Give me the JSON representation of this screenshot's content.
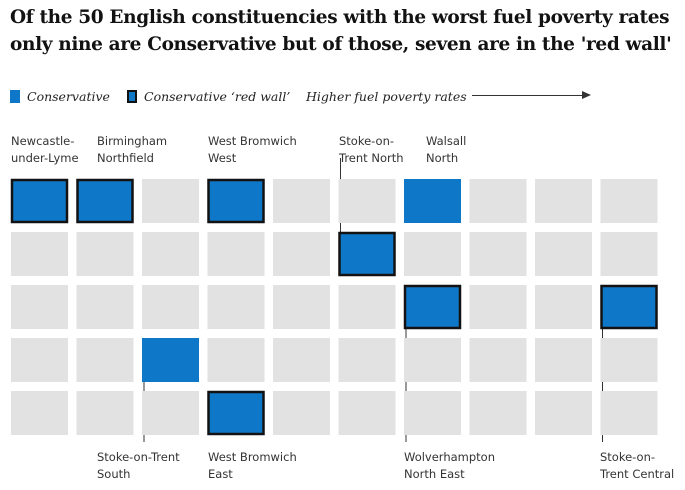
{
  "title": {
    "line1": "Of the 50 English constituencies with the worst fuel poverty rates",
    "line2": "only nine are Conservative but of those, seven are in the 'red wall'"
  },
  "legend": {
    "conservative": "Conservative",
    "red_wall": "Conservative ‘red wall’",
    "direction": "Higher fuel poverty rates"
  },
  "colors": {
    "conservative": "#0f77c7",
    "empty": "#e2e2e2",
    "red_wall_border": "#121212",
    "leader_line": "#333333"
  },
  "chart_data": {
    "type": "heatmap",
    "description": "50 constituencies in a 10-column by 5-row grid, ordered by fuel poverty rate",
    "columns": 10,
    "rows": 5,
    "cells": [
      {
        "name": "Newcastle-under-Lyme",
        "col": 1,
        "row": 1,
        "party": "Conservative red wall"
      },
      {
        "name": "Birmingham Northfield",
        "col": 2,
        "row": 1,
        "party": "Conservative red wall"
      },
      {
        "name": "West Bromwich West",
        "col": 4,
        "row": 1,
        "party": "Conservative red wall"
      },
      {
        "name": "Walsall North",
        "col": 7,
        "row": 1,
        "party": "Conservative"
      },
      {
        "name": "Stoke-on-Trent North",
        "col": 6,
        "row": 2,
        "party": "Conservative red wall"
      },
      {
        "name": "Wolverhampton North East",
        "col": 7,
        "row": 3,
        "party": "Conservative red wall"
      },
      {
        "name": "Stoke-on-Trent Central",
        "col": 10,
        "row": 3,
        "party": "Conservative red wall"
      },
      {
        "name": "Stoke-on-Trent South",
        "col": 3,
        "row": 4,
        "party": "Conservative"
      },
      {
        "name": "West Bromwich East",
        "col": 4,
        "row": 5,
        "party": "Conservative red wall"
      }
    ]
  },
  "labels": {
    "newcastle": [
      "Newcastle-",
      "under-Lyme"
    ],
    "birmingham": [
      "Birmingham",
      "Northfield"
    ],
    "wbwest": [
      "West Bromwich",
      "West"
    ],
    "stoke_north": [
      "Stoke-on-",
      "Trent North"
    ],
    "walsall": [
      "Walsall",
      "North"
    ],
    "stoke_south": [
      "Stoke-on-Trent",
      "South"
    ],
    "wbeast": [
      "West Bromwich",
      "East"
    ],
    "wolverhampton": [
      "Wolverhampton",
      "North East"
    ],
    "stoke_central": [
      "Stoke-on-",
      "Trent Central"
    ]
  }
}
